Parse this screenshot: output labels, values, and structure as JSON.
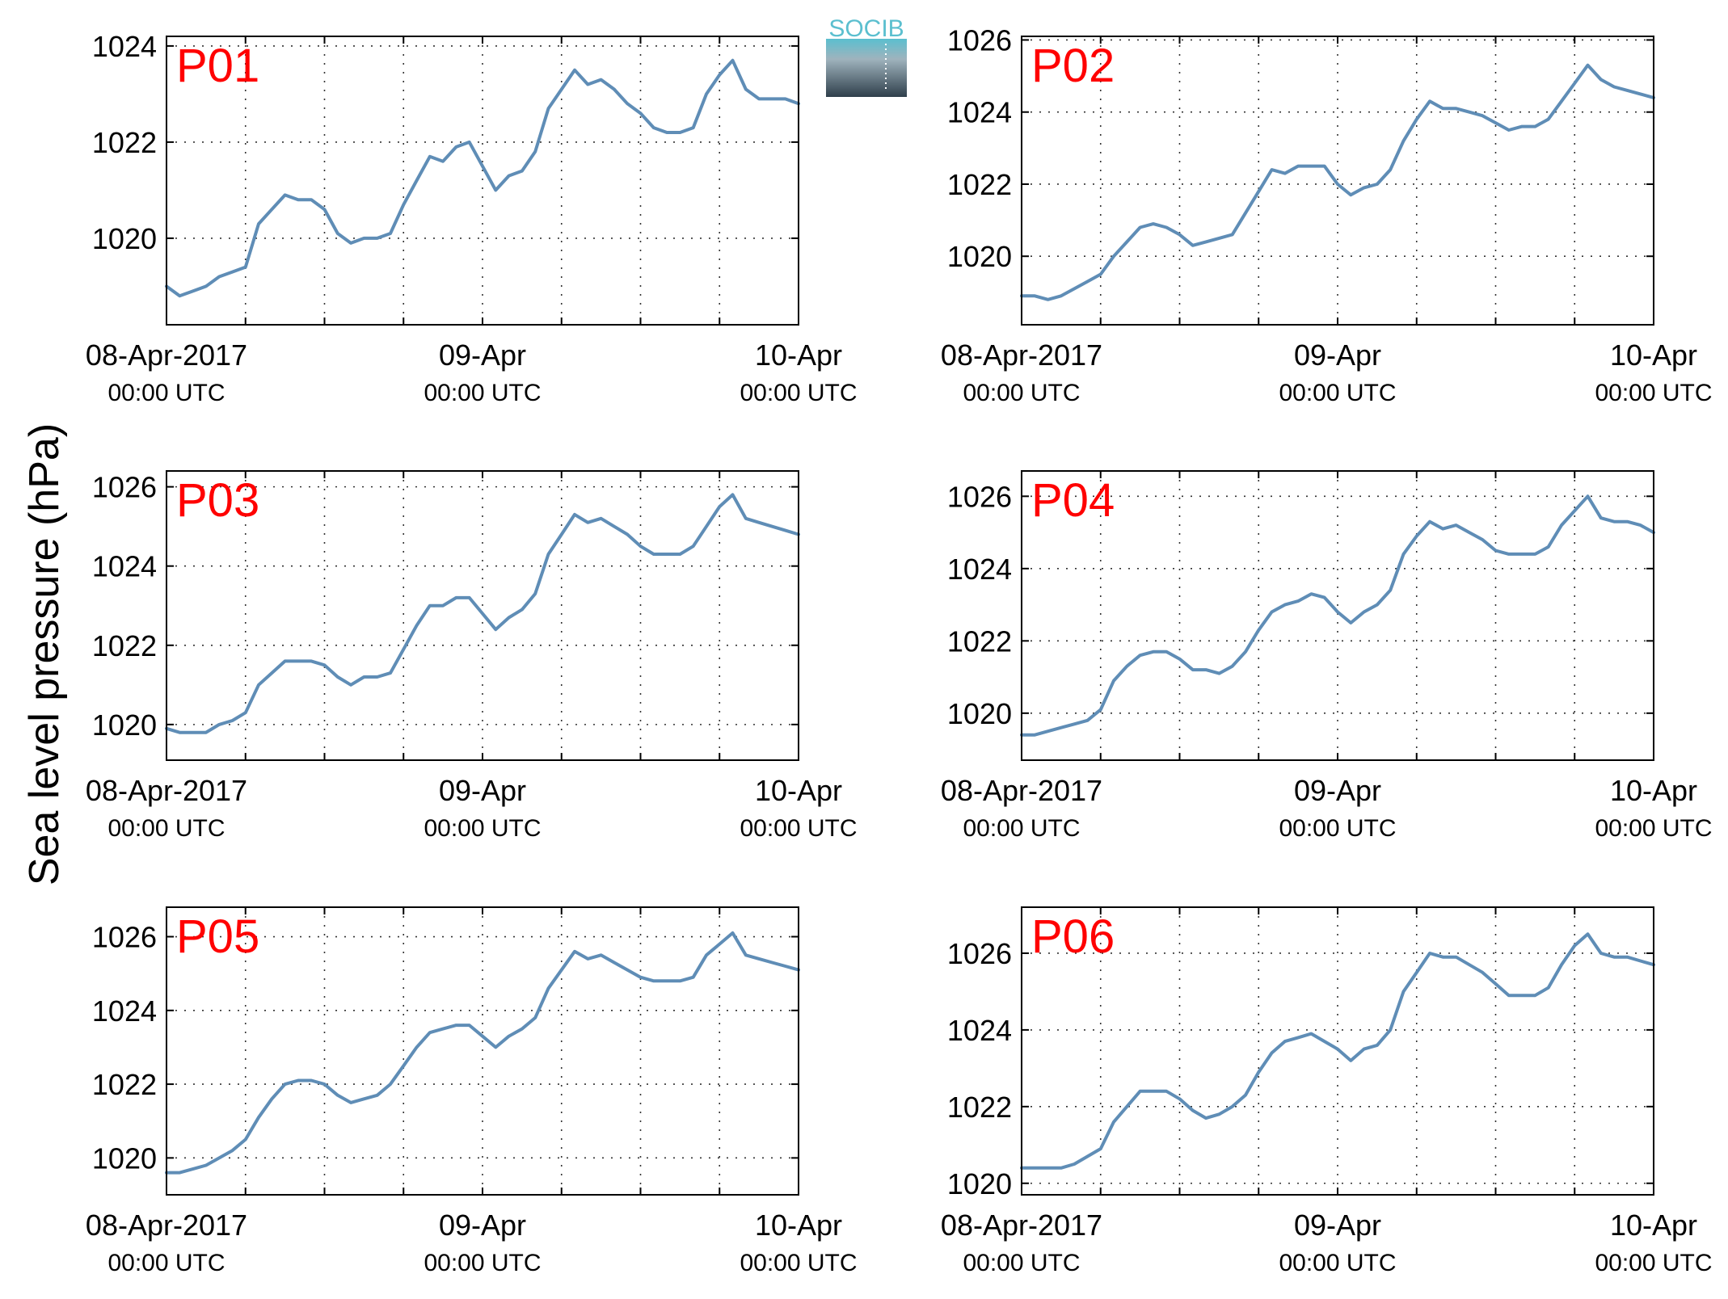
{
  "figure": {
    "ylabel": "Sea level pressure (hPa)",
    "logo_text": "SOCIB"
  },
  "colors": {
    "line": "#5f8db6",
    "panel_label": "#ff0000",
    "axes": "#000000",
    "grid": "#333333",
    "logo_top": "#5bbfcf",
    "logo_bottom": "#2f3f4b"
  },
  "x_ticks": [
    {
      "value": 0,
      "line1": "08-Apr-2017",
      "line2": "00:00 UTC"
    },
    {
      "value": 24,
      "line1": "09-Apr",
      "line2": "00:00 UTC"
    },
    {
      "value": 48,
      "line1": "10-Apr",
      "line2": "00:00 UTC"
    }
  ],
  "chart_data": [
    {
      "type": "line",
      "title": "P01",
      "x_unit": "hours since 08-Apr-2017 00:00 UTC",
      "xlim": [
        0,
        48
      ],
      "ylim": [
        1018.2,
        1024.2
      ],
      "yticks": [
        1020,
        1022,
        1024
      ],
      "grid": true,
      "series": [
        {
          "x": [
            0,
            1,
            2,
            3,
            4,
            5,
            6,
            7,
            8,
            9,
            10,
            11,
            12,
            13,
            14,
            15,
            16,
            17,
            18,
            19,
            20,
            21,
            22,
            23,
            24,
            25,
            26,
            27,
            28,
            29,
            30,
            31,
            32,
            33,
            34,
            35,
            36,
            37,
            38,
            39,
            40,
            41,
            42,
            43,
            44,
            45,
            46,
            47,
            48
          ],
          "values": [
            1019.0,
            1018.8,
            1018.9,
            1019.0,
            1019.2,
            1019.3,
            1019.4,
            1020.3,
            1020.6,
            1020.9,
            1020.8,
            1020.8,
            1020.6,
            1020.1,
            1019.9,
            1020.0,
            1020.0,
            1020.1,
            1020.7,
            1021.2,
            1021.7,
            1021.6,
            1021.9,
            1022.0,
            1021.5,
            1021.0,
            1021.3,
            1021.4,
            1021.8,
            1022.7,
            1023.1,
            1023.5,
            1023.2,
            1023.3,
            1023.1,
            1022.8,
            1022.6,
            1022.3,
            1022.2,
            1022.2,
            1022.3,
            1023.0,
            1023.4,
            1023.7,
            1023.1,
            1022.9,
            1022.9,
            1022.9,
            1022.8
          ]
        }
      ]
    },
    {
      "type": "line",
      "title": "P02",
      "x_unit": "hours since 08-Apr-2017 00:00 UTC",
      "xlim": [
        0,
        48
      ],
      "ylim": [
        1018.1,
        1026.1
      ],
      "yticks": [
        1020,
        1022,
        1024,
        1026
      ],
      "grid": true,
      "series": [
        {
          "x": [
            0,
            1,
            2,
            3,
            4,
            5,
            6,
            7,
            8,
            9,
            10,
            11,
            12,
            13,
            14,
            15,
            16,
            17,
            18,
            19,
            20,
            21,
            22,
            23,
            24,
            25,
            26,
            27,
            28,
            29,
            30,
            31,
            32,
            33,
            34,
            35,
            36,
            37,
            38,
            39,
            40,
            41,
            42,
            43,
            44,
            45,
            46,
            47,
            48
          ],
          "values": [
            1018.9,
            1018.9,
            1018.8,
            1018.9,
            1019.1,
            1019.3,
            1019.5,
            1020.0,
            1020.4,
            1020.8,
            1020.9,
            1020.8,
            1020.6,
            1020.3,
            1020.4,
            1020.5,
            1020.6,
            1021.2,
            1021.8,
            1022.4,
            1022.3,
            1022.5,
            1022.5,
            1022.5,
            1022.0,
            1021.7,
            1021.9,
            1022.0,
            1022.4,
            1023.2,
            1023.8,
            1024.3,
            1024.1,
            1024.1,
            1024.0,
            1023.9,
            1023.7,
            1023.5,
            1023.6,
            1023.6,
            1023.8,
            1024.3,
            1024.8,
            1025.3,
            1024.9,
            1024.7,
            1024.6,
            1024.5,
            1024.4
          ]
        }
      ]
    },
    {
      "type": "line",
      "title": "P03",
      "x_unit": "hours since 08-Apr-2017 00:00 UTC",
      "xlim": [
        0,
        48
      ],
      "ylim": [
        1019.1,
        1026.4
      ],
      "yticks": [
        1020,
        1022,
        1024,
        1026
      ],
      "grid": true,
      "series": [
        {
          "x": [
            0,
            1,
            2,
            3,
            4,
            5,
            6,
            7,
            8,
            9,
            10,
            11,
            12,
            13,
            14,
            15,
            16,
            17,
            18,
            19,
            20,
            21,
            22,
            23,
            24,
            25,
            26,
            27,
            28,
            29,
            30,
            31,
            32,
            33,
            34,
            35,
            36,
            37,
            38,
            39,
            40,
            41,
            42,
            43,
            44,
            45,
            46,
            47,
            48
          ],
          "values": [
            1019.9,
            1019.8,
            1019.8,
            1019.8,
            1020.0,
            1020.1,
            1020.3,
            1021.0,
            1021.3,
            1021.6,
            1021.6,
            1021.6,
            1021.5,
            1021.2,
            1021.0,
            1021.2,
            1021.2,
            1021.3,
            1021.9,
            1022.5,
            1023.0,
            1023.0,
            1023.2,
            1023.2,
            1022.8,
            1022.4,
            1022.7,
            1022.9,
            1023.3,
            1024.3,
            1024.8,
            1025.3,
            1025.1,
            1025.2,
            1025.0,
            1024.8,
            1024.5,
            1024.3,
            1024.3,
            1024.3,
            1024.5,
            1025.0,
            1025.5,
            1025.8,
            1025.2,
            1025.1,
            1025.0,
            1024.9,
            1024.8
          ]
        }
      ]
    },
    {
      "type": "line",
      "title": "P04",
      "x_unit": "hours since 08-Apr-2017 00:00 UTC",
      "xlim": [
        0,
        48
      ],
      "ylim": [
        1018.7,
        1026.7
      ],
      "yticks": [
        1020,
        1022,
        1024,
        1026
      ],
      "grid": true,
      "series": [
        {
          "x": [
            0,
            1,
            2,
            3,
            4,
            5,
            6,
            7,
            8,
            9,
            10,
            11,
            12,
            13,
            14,
            15,
            16,
            17,
            18,
            19,
            20,
            21,
            22,
            23,
            24,
            25,
            26,
            27,
            28,
            29,
            30,
            31,
            32,
            33,
            34,
            35,
            36,
            37,
            38,
            39,
            40,
            41,
            42,
            43,
            44,
            45,
            46,
            47,
            48
          ],
          "values": [
            1019.4,
            1019.4,
            1019.5,
            1019.6,
            1019.7,
            1019.8,
            1020.1,
            1020.9,
            1021.3,
            1021.6,
            1021.7,
            1021.7,
            1021.5,
            1021.2,
            1021.2,
            1021.1,
            1021.3,
            1021.7,
            1022.3,
            1022.8,
            1023.0,
            1023.1,
            1023.3,
            1023.2,
            1022.8,
            1022.5,
            1022.8,
            1023.0,
            1023.4,
            1024.4,
            1024.9,
            1025.3,
            1025.1,
            1025.2,
            1025.0,
            1024.8,
            1024.5,
            1024.4,
            1024.4,
            1024.4,
            1024.6,
            1025.2,
            1025.6,
            1026.0,
            1025.4,
            1025.3,
            1025.3,
            1025.2,
            1025.0
          ]
        }
      ]
    },
    {
      "type": "line",
      "title": "P05",
      "x_unit": "hours since 08-Apr-2017 00:00 UTC",
      "xlim": [
        0,
        48
      ],
      "ylim": [
        1019.0,
        1026.8
      ],
      "yticks": [
        1020,
        1022,
        1024,
        1026
      ],
      "grid": true,
      "series": [
        {
          "x": [
            0,
            1,
            2,
            3,
            4,
            5,
            6,
            7,
            8,
            9,
            10,
            11,
            12,
            13,
            14,
            15,
            16,
            17,
            18,
            19,
            20,
            21,
            22,
            23,
            24,
            25,
            26,
            27,
            28,
            29,
            30,
            31,
            32,
            33,
            34,
            35,
            36,
            37,
            38,
            39,
            40,
            41,
            42,
            43,
            44,
            45,
            46,
            47,
            48
          ],
          "values": [
            1019.6,
            1019.6,
            1019.7,
            1019.8,
            1020.0,
            1020.2,
            1020.5,
            1021.1,
            1021.6,
            1022.0,
            1022.1,
            1022.1,
            1022.0,
            1021.7,
            1021.5,
            1021.6,
            1021.7,
            1022.0,
            1022.5,
            1023.0,
            1023.4,
            1023.5,
            1023.6,
            1023.6,
            1023.3,
            1023.0,
            1023.3,
            1023.5,
            1023.8,
            1024.6,
            1025.1,
            1025.6,
            1025.4,
            1025.5,
            1025.3,
            1025.1,
            1024.9,
            1024.8,
            1024.8,
            1024.8,
            1024.9,
            1025.5,
            1025.8,
            1026.1,
            1025.5,
            1025.4,
            1025.3,
            1025.2,
            1025.1
          ]
        }
      ]
    },
    {
      "type": "line",
      "title": "P06",
      "x_unit": "hours since 08-Apr-2017 00:00 UTC",
      "xlim": [
        0,
        48
      ],
      "ylim": [
        1019.7,
        1027.2
      ],
      "yticks": [
        1020,
        1022,
        1024,
        1026
      ],
      "grid": true,
      "series": [
        {
          "x": [
            0,
            1,
            2,
            3,
            4,
            5,
            6,
            7,
            8,
            9,
            10,
            11,
            12,
            13,
            14,
            15,
            16,
            17,
            18,
            19,
            20,
            21,
            22,
            23,
            24,
            25,
            26,
            27,
            28,
            29,
            30,
            31,
            32,
            33,
            34,
            35,
            36,
            37,
            38,
            39,
            40,
            41,
            42,
            43,
            44,
            45,
            46,
            47,
            48
          ],
          "values": [
            1020.4,
            1020.4,
            1020.4,
            1020.4,
            1020.5,
            1020.7,
            1020.9,
            1021.6,
            1022.0,
            1022.4,
            1022.4,
            1022.4,
            1022.2,
            1021.9,
            1021.7,
            1021.8,
            1022.0,
            1022.3,
            1022.9,
            1023.4,
            1023.7,
            1023.8,
            1023.9,
            1023.7,
            1023.5,
            1023.2,
            1023.5,
            1023.6,
            1024.0,
            1025.0,
            1025.5,
            1026.0,
            1025.9,
            1025.9,
            1025.7,
            1025.5,
            1025.2,
            1024.9,
            1024.9,
            1024.9,
            1025.1,
            1025.7,
            1026.2,
            1026.5,
            1026.0,
            1025.9,
            1025.9,
            1025.8,
            1025.7
          ]
        }
      ]
    }
  ]
}
